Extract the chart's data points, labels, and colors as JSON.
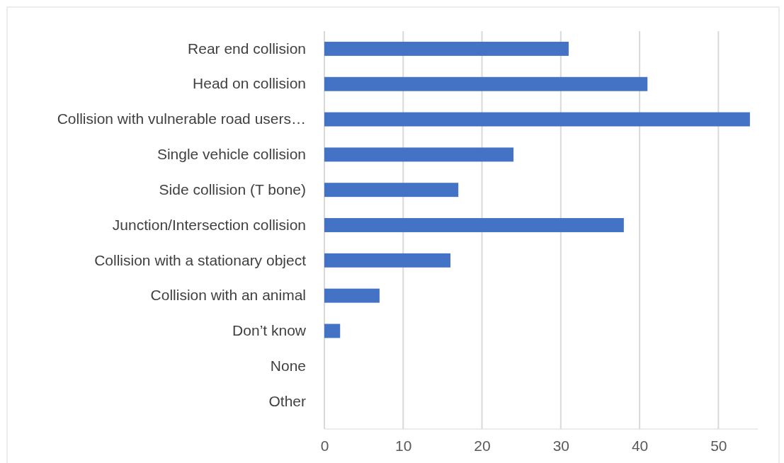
{
  "chart_data": {
    "type": "bar",
    "orientation": "horizontal",
    "categories": [
      "Rear end collision",
      "Head on collision",
      "Collision with vulnerable road users…",
      "Single vehicle collision",
      "Side collision (T bone)",
      "Junction/Intersection collision",
      "Collision with a stationary object",
      "Collision with an animal",
      "Don’t know",
      "None",
      "Other"
    ],
    "values": [
      31,
      41,
      54,
      24,
      17,
      38,
      16,
      7,
      2,
      0,
      0
    ],
    "color": "#4472c4",
    "xlim": [
      0,
      55
    ],
    "xticks": [
      0,
      10,
      20,
      30,
      40,
      50
    ],
    "grid": "x"
  }
}
